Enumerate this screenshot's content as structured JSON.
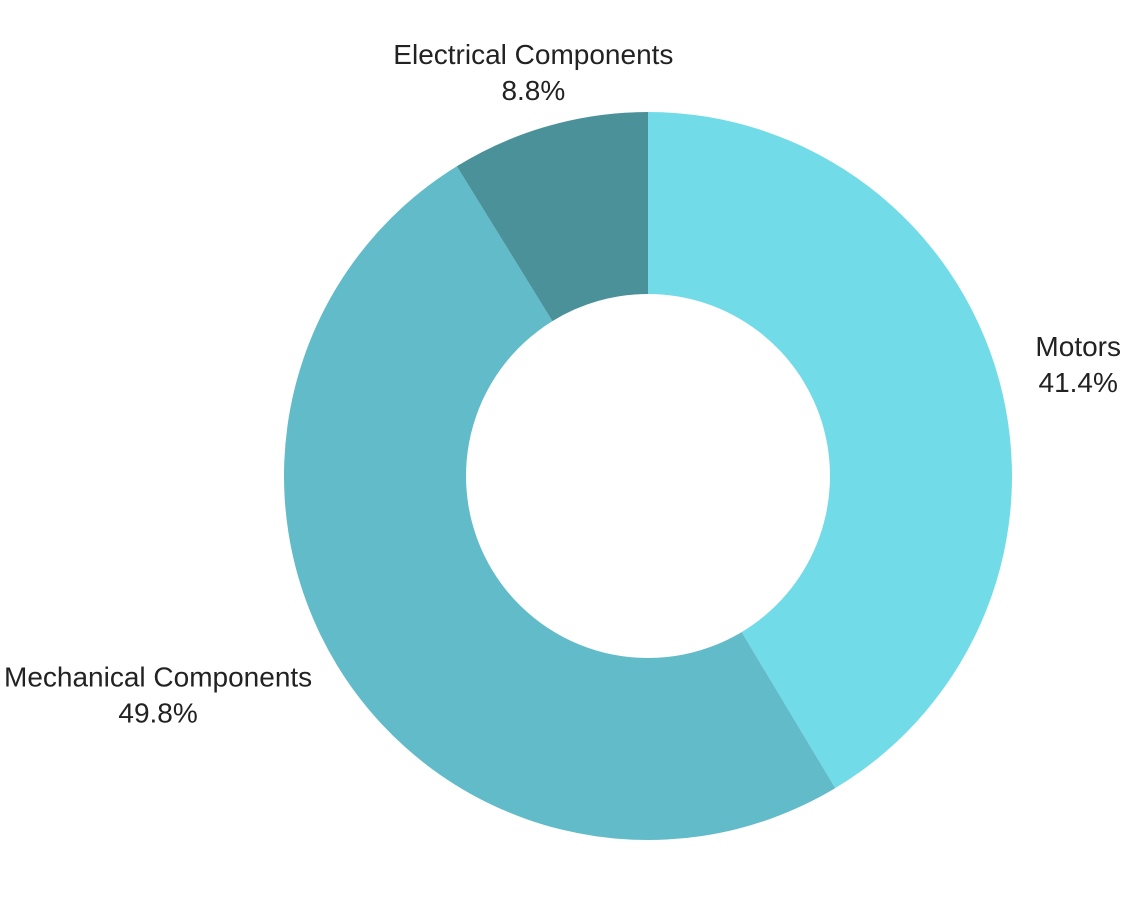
{
  "chart_data": {
    "type": "pie",
    "style": "donut",
    "start": "12 o'clock",
    "direction": "clockwise",
    "slices": [
      {
        "label": "Motors",
        "value": 41.4,
        "display": "41.4%",
        "color": "#72dbe8"
      },
      {
        "label": "Mechanical Components",
        "value": 49.8,
        "display": "49.8%",
        "color": "#62bbc9"
      },
      {
        "label": "Electrical Components",
        "value": 8.8,
        "display": "8.8%",
        "color": "#4a9199"
      }
    ]
  }
}
